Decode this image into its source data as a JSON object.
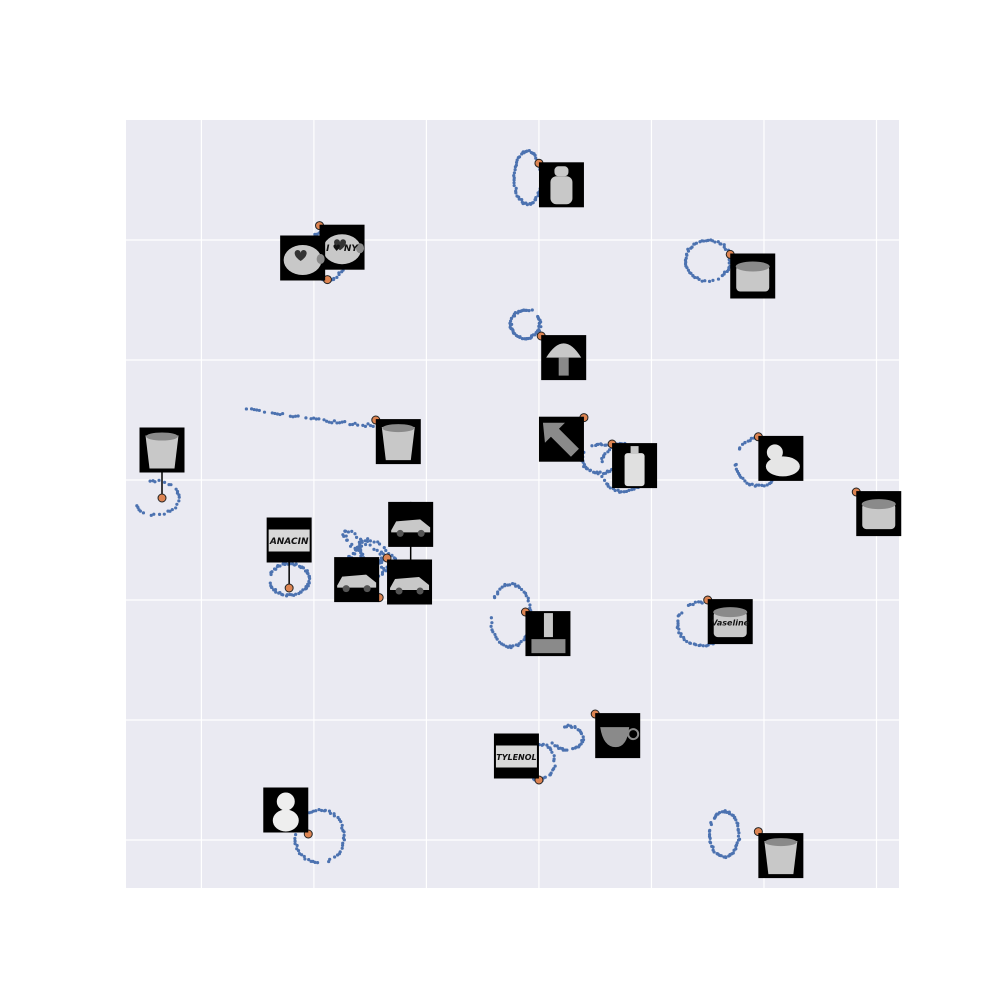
{
  "chart_data": {
    "type": "scatter",
    "title": "",
    "xlabel": "",
    "ylabel": "",
    "grid": true,
    "legend": false,
    "xlim": [
      -0.67,
      6.2
    ],
    "ylim": [
      -6.4,
      0
    ],
    "background": "#eaeaf2",
    "gridColor": "#ffffff",
    "pointColor": "#4c72b0",
    "markerColor": "#dd8452",
    "thumbBackground": "#000000",
    "clusters": [
      {
        "object": "bottle",
        "shape": "ring",
        "label": "",
        "center": [
          2.9,
          -0.48
        ],
        "radii": [
          0.12,
          0.22
        ],
        "anchor": [
          3.0,
          -0.36
        ],
        "thumb_offset": [
          0.2,
          -0.18
        ]
      },
      {
        "object": "i-love-ny-piggy-bank",
        "shape": "ring",
        "label": "I ♥ NY",
        "center": [
          1.12,
          -1.12
        ],
        "radii": [
          0.17,
          0.21
        ],
        "anchor": [
          1.05,
          -0.88
        ],
        "thumb_offset": [
          0.2,
          -0.18
        ]
      },
      {
        "object": "piggy-bank",
        "shape": "none",
        "label": "",
        "center": [
          1.12,
          -1.12
        ],
        "radii": [
          0,
          0
        ],
        "anchor": [
          1.12,
          -1.33
        ],
        "thumb_offset": [
          -0.22,
          0.18
        ]
      },
      {
        "object": "cream-jar",
        "shape": "ring",
        "label": "",
        "center": [
          4.5,
          -1.17
        ],
        "radii": [
          0.2,
          0.17
        ],
        "anchor": [
          4.7,
          -1.12
        ],
        "thumb_offset": [
          0.2,
          -0.18
        ]
      },
      {
        "object": "mushroom",
        "shape": "ring",
        "label": "",
        "center": [
          2.88,
          -1.7
        ],
        "radii": [
          0.13,
          0.12
        ],
        "anchor": [
          3.02,
          -1.8
        ],
        "thumb_offset": [
          0.2,
          -0.18
        ]
      },
      {
        "object": "cup-container",
        "shape": "trail",
        "label": "",
        "center": [
          0.4,
          -2.4
        ],
        "radii": [
          0,
          0
        ],
        "anchor": [
          1.55,
          -2.5
        ],
        "thumb_offset": [
          0.2,
          -0.18
        ]
      },
      {
        "object": "arrow-toy",
        "shape": "ring",
        "label": "",
        "center": [
          3.55,
          -2.82
        ],
        "radii": [
          0.17,
          0.12
        ],
        "anchor": [
          3.4,
          -2.48
        ],
        "thumb_offset": [
          -0.2,
          -0.18
        ]
      },
      {
        "object": "johnsons-baby-lotion",
        "shape": "ring",
        "label": "",
        "center": [
          3.75,
          -2.9
        ],
        "radii": [
          0.2,
          0.2
        ],
        "anchor": [
          3.65,
          -2.7
        ],
        "thumb_offset": [
          0.2,
          -0.18
        ]
      },
      {
        "object": "rubber-duck",
        "shape": "ring",
        "label": "",
        "center": [
          4.95,
          -2.85
        ],
        "radii": [
          0.2,
          0.2
        ],
        "anchor": [
          4.95,
          -2.64
        ],
        "thumb_offset": [
          0.2,
          -0.18
        ]
      },
      {
        "object": "glass-jar",
        "shape": "blob",
        "label": "",
        "center": [
          6.05,
          -3.2
        ],
        "radii": [
          0.06,
          0.08
        ],
        "anchor": [
          5.82,
          -3.1
        ],
        "thumb_offset": [
          0.2,
          -0.18
        ]
      },
      {
        "object": "ceramic-pot",
        "shape": "arc",
        "label": "",
        "center": [
          -0.4,
          -3.15
        ],
        "radii": [
          0.2,
          0.14
        ],
        "anchor": [
          -0.35,
          -3.15
        ],
        "thumb_offset": [
          0,
          0.4
        ]
      },
      {
        "object": "race-car",
        "shape": "scribble",
        "label": "",
        "center": [
          1.45,
          -3.6
        ],
        "radii": [
          0.28,
          0.2
        ],
        "anchor": [
          1.65,
          -3.65
        ],
        "thumb_offset": [
          0.2,
          -0.2
        ]
      },
      {
        "object": "sports-car",
        "shape": "none",
        "label": "",
        "center": [
          1.45,
          -3.6
        ],
        "radii": [
          0,
          0
        ],
        "anchor": [
          1.58,
          -3.98
        ],
        "thumb_offset": [
          -0.2,
          0.15
        ]
      },
      {
        "object": "convertible",
        "shape": "none",
        "label": "",
        "center": [
          1.45,
          -3.6
        ],
        "radii": [
          0,
          0
        ],
        "anchor": [
          1.86,
          -3.72
        ],
        "thumb_offset": [
          0,
          0.35
        ]
      },
      {
        "object": "anacin-box",
        "shape": "ring",
        "label": "ANACIN",
        "center": [
          0.78,
          -3.83
        ],
        "radii": [
          0.18,
          0.13
        ],
        "anchor": [
          0.78,
          -3.9
        ],
        "thumb_offset": [
          0,
          0.4
        ]
      },
      {
        "object": "lamp-base",
        "shape": "ring",
        "label": "",
        "center": [
          2.75,
          -4.13
        ],
        "radii": [
          0.18,
          0.26
        ],
        "anchor": [
          2.88,
          -4.1
        ],
        "thumb_offset": [
          0.2,
          -0.18
        ]
      },
      {
        "object": "vaseline-jar",
        "shape": "ring",
        "label": "Vaseline",
        "center": [
          4.45,
          -4.2
        ],
        "radii": [
          0.22,
          0.18
        ],
        "anchor": [
          4.5,
          -4.0
        ],
        "thumb_offset": [
          0.2,
          -0.18
        ]
      },
      {
        "object": "coffee-cup",
        "shape": "arc",
        "label": "",
        "center": [
          3.25,
          -5.15
        ],
        "radii": [
          0.14,
          0.1
        ],
        "anchor": [
          3.5,
          -4.95
        ],
        "thumb_offset": [
          0.2,
          -0.18
        ]
      },
      {
        "object": "tylenol-box",
        "shape": "arc",
        "label": "TYLENOL",
        "center": [
          3.0,
          -5.35
        ],
        "radii": [
          0.14,
          0.15
        ],
        "anchor": [
          3.0,
          -5.5
        ],
        "thumb_offset": [
          -0.2,
          0.2
        ]
      },
      {
        "object": "maneki-neko-cat",
        "shape": "ring",
        "label": "",
        "center": [
          1.05,
          -5.97
        ],
        "radii": [
          0.22,
          0.22
        ],
        "anchor": [
          0.95,
          -5.95
        ],
        "thumb_offset": [
          -0.2,
          0.2
        ]
      },
      {
        "object": "porcelain-cup",
        "shape": "ring",
        "label": "",
        "center": [
          4.65,
          -5.95
        ],
        "radii": [
          0.13,
          0.19
        ],
        "anchor": [
          4.95,
          -5.93
        ],
        "thumb_offset": [
          0.2,
          -0.2
        ]
      }
    ]
  }
}
